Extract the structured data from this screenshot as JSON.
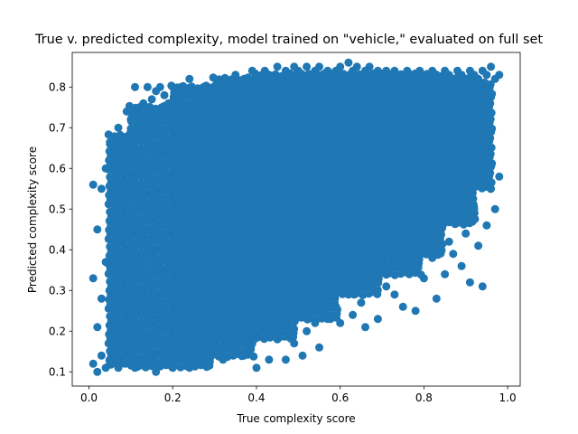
{
  "chart_data": {
    "type": "scatter",
    "title": "True v. predicted complexity, model trained on \"vehicle,\" evaluated on full set",
    "xlabel": "True complexity score",
    "ylabel": "Predicted complexity score",
    "xlim": [
      -0.04,
      1.03
    ],
    "ylim": [
      0.065,
      0.885
    ],
    "xticks": [
      0.0,
      0.2,
      0.4,
      0.6,
      0.8,
      1.0
    ],
    "xtick_labels": [
      "0.0",
      "0.2",
      "0.4",
      "0.6",
      "0.8",
      "1.0"
    ],
    "yticks": [
      0.1,
      0.2,
      0.3,
      0.4,
      0.5,
      0.6,
      0.7,
      0.8
    ],
    "ytick_labels": [
      "0.1",
      "0.2",
      "0.3",
      "0.4",
      "0.5",
      "0.6",
      "0.7",
      "0.8"
    ],
    "grid": false,
    "marker_color": "#1f77b4",
    "series": [
      {
        "x": [
          0.01,
          0.01,
          0.01,
          0.02,
          0.02,
          0.02,
          0.03,
          0.03,
          0.03,
          0.04,
          0.04,
          0.04,
          0.05,
          0.05,
          0.05,
          0.06,
          0.06,
          0.06,
          0.07,
          0.07,
          0.08,
          0.08,
          0.09,
          0.09,
          0.1,
          0.1,
          0.11,
          0.11,
          0.12,
          0.12,
          0.13,
          0.13,
          0.14,
          0.14,
          0.15,
          0.15,
          0.16,
          0.16,
          0.17,
          0.17,
          0.18,
          0.18,
          0.19,
          0.19,
          0.2,
          0.2,
          0.21,
          0.21,
          0.22,
          0.22,
          0.23,
          0.23,
          0.24,
          0.24,
          0.25,
          0.25,
          0.26,
          0.26,
          0.27,
          0.27,
          0.28,
          0.28,
          0.29,
          0.29,
          0.3,
          0.3,
          0.31,
          0.31,
          0.32,
          0.32,
          0.33,
          0.33,
          0.34,
          0.34,
          0.35,
          0.35,
          0.36,
          0.36,
          0.37,
          0.37,
          0.38,
          0.38,
          0.39,
          0.39,
          0.4,
          0.4,
          0.41,
          0.41,
          0.42,
          0.42,
          0.43,
          0.43,
          0.44,
          0.44,
          0.45,
          0.45,
          0.46,
          0.46,
          0.47,
          0.47,
          0.48,
          0.48,
          0.49,
          0.49,
          0.5,
          0.5,
          0.51,
          0.51,
          0.52,
          0.52,
          0.53,
          0.53,
          0.54,
          0.54,
          0.55,
          0.55,
          0.56,
          0.56,
          0.57,
          0.57,
          0.58,
          0.58,
          0.59,
          0.59,
          0.6,
          0.6,
          0.61,
          0.61,
          0.62,
          0.62,
          0.63,
          0.63,
          0.64,
          0.64,
          0.65,
          0.65,
          0.66,
          0.66,
          0.67,
          0.67,
          0.68,
          0.68,
          0.69,
          0.69,
          0.7,
          0.7,
          0.71,
          0.71,
          0.72,
          0.72,
          0.73,
          0.73,
          0.74,
          0.74,
          0.75,
          0.75,
          0.76,
          0.76,
          0.77,
          0.77,
          0.78,
          0.78,
          0.79,
          0.79,
          0.8,
          0.8,
          0.81,
          0.81,
          0.82,
          0.82,
          0.83,
          0.83,
          0.84,
          0.84,
          0.85,
          0.85,
          0.86,
          0.86,
          0.87,
          0.87,
          0.88,
          0.88,
          0.89,
          0.89,
          0.9,
          0.9,
          0.91,
          0.91,
          0.92,
          0.92,
          0.93,
          0.93,
          0.94,
          0.94,
          0.95,
          0.95,
          0.96,
          0.96,
          0.97,
          0.97,
          0.98,
          0.98,
          0.06,
          0.09,
          0.11,
          0.14,
          0.17,
          0.19,
          0.22,
          0.25,
          0.28,
          0.3,
          0.33,
          0.36,
          0.39,
          0.42,
          0.44,
          0.47,
          0.5,
          0.53,
          0.56,
          0.58,
          0.61,
          0.64,
          0.67,
          0.7,
          0.72,
          0.75,
          0.78,
          0.81,
          0.84,
          0.86,
          0.89,
          0.92,
          0.95
        ],
        "y": [
          0.56,
          0.12,
          0.33,
          0.45,
          0.1,
          0.21,
          0.55,
          0.14,
          0.28,
          0.6,
          0.11,
          0.37,
          0.66,
          0.12,
          0.3,
          0.62,
          0.16,
          0.42,
          0.7,
          0.11,
          0.67,
          0.19,
          0.74,
          0.13,
          0.72,
          0.24,
          0.8,
          0.11,
          0.75,
          0.17,
          0.76,
          0.29,
          0.8,
          0.12,
          0.77,
          0.2,
          0.79,
          0.1,
          0.8,
          0.25,
          0.78,
          0.12,
          0.76,
          0.18,
          0.8,
          0.11,
          0.75,
          0.26,
          0.8,
          0.14,
          0.74,
          0.2,
          0.82,
          0.11,
          0.79,
          0.16,
          0.78,
          0.22,
          0.76,
          0.12,
          0.8,
          0.18,
          0.77,
          0.29,
          0.79,
          0.15,
          0.76,
          0.24,
          0.8,
          0.13,
          0.79,
          0.2,
          0.81,
          0.27,
          0.83,
          0.16,
          0.78,
          0.22,
          0.82,
          0.14,
          0.8,
          0.28,
          0.84,
          0.17,
          0.82,
          0.11,
          0.81,
          0.26,
          0.84,
          0.21,
          0.83,
          0.13,
          0.8,
          0.24,
          0.85,
          0.18,
          0.82,
          0.28,
          0.84,
          0.13,
          0.83,
          0.23,
          0.85,
          0.17,
          0.84,
          0.27,
          0.82,
          0.14,
          0.85,
          0.2,
          0.83,
          0.31,
          0.84,
          0.22,
          0.85,
          0.16,
          0.83,
          0.28,
          0.84,
          0.23,
          0.83,
          0.3,
          0.84,
          0.26,
          0.85,
          0.22,
          0.82,
          0.33,
          0.86,
          0.29,
          0.84,
          0.24,
          0.85,
          0.33,
          0.83,
          0.27,
          0.84,
          0.21,
          0.85,
          0.32,
          0.83,
          0.36,
          0.84,
          0.23,
          0.82,
          0.35,
          0.84,
          0.31,
          0.83,
          0.38,
          0.84,
          0.29,
          0.83,
          0.42,
          0.82,
          0.26,
          0.84,
          0.35,
          0.83,
          0.39,
          0.82,
          0.25,
          0.84,
          0.45,
          0.83,
          0.33,
          0.82,
          0.44,
          0.84,
          0.38,
          0.83,
          0.28,
          0.82,
          0.46,
          0.84,
          0.34,
          0.83,
          0.42,
          0.82,
          0.39,
          0.84,
          0.48,
          0.83,
          0.36,
          0.82,
          0.44,
          0.84,
          0.32,
          0.83,
          0.5,
          0.82,
          0.41,
          0.84,
          0.31,
          0.83,
          0.46,
          0.85,
          0.55,
          0.82,
          0.5,
          0.83,
          0.58,
          0.45,
          0.58,
          0.35,
          0.42,
          0.5,
          0.36,
          0.45,
          0.39,
          0.47,
          0.53,
          0.43,
          0.5,
          0.54,
          0.47,
          0.56,
          0.52,
          0.6,
          0.57,
          0.55,
          0.62,
          0.6,
          0.64,
          0.58,
          0.66,
          0.63,
          0.68,
          0.65,
          0.7,
          0.67,
          0.72,
          0.69,
          0.74,
          0.71
        ]
      }
    ],
    "dense_regions": [
      {
        "x0": 0.05,
        "x1": 0.1,
        "y0": 0.11,
        "y1": 0.68
      },
      {
        "x0": 0.1,
        "x1": 0.3,
        "y0": 0.11,
        "y1": 0.75
      },
      {
        "x0": 0.2,
        "x1": 0.4,
        "y0": 0.14,
        "y1": 0.8
      },
      {
        "x0": 0.3,
        "x1": 0.5,
        "y0": 0.18,
        "y1": 0.82
      },
      {
        "x0": 0.4,
        "x1": 0.6,
        "y0": 0.23,
        "y1": 0.83
      },
      {
        "x0": 0.5,
        "x1": 0.7,
        "y0": 0.28,
        "y1": 0.83
      },
      {
        "x0": 0.6,
        "x1": 0.8,
        "y0": 0.33,
        "y1": 0.83
      },
      {
        "x0": 0.7,
        "x1": 0.85,
        "y0": 0.38,
        "y1": 0.83
      },
      {
        "x0": 0.8,
        "x1": 0.93,
        "y0": 0.46,
        "y1": 0.82
      },
      {
        "x0": 0.9,
        "x1": 0.96,
        "y0": 0.55,
        "y1": 0.81
      }
    ]
  }
}
